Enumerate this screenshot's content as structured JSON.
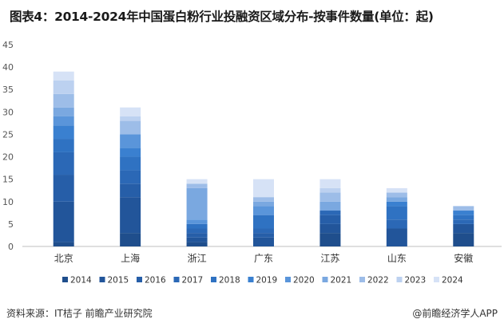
{
  "header": {
    "title": "图表4：2014-2024年中国蛋白粉行业投融资区域分布-按事件数量(单位：起)"
  },
  "footer": {
    "source": "资料来源：IT桔子 前瞻产业研究院",
    "brand": "@前瞻经济学人APP"
  },
  "chart_data": {
    "type": "bar",
    "stacked": true,
    "categories": [
      "北京",
      "上海",
      "浙江",
      "广东",
      "江苏",
      "山东",
      "安徽"
    ],
    "ylim": [
      0,
      45
    ],
    "yticks": [
      0,
      5,
      10,
      15,
      20,
      25,
      30,
      35,
      40,
      45
    ],
    "grid": false,
    "legend_position": "bottom",
    "series": [
      {
        "name": "2014",
        "color": "#1f4e8c",
        "values": [
          1,
          3,
          1,
          0,
          3,
          0,
          3
        ]
      },
      {
        "name": "2015",
        "color": "#22559a",
        "values": [
          9,
          8,
          1,
          2,
          2,
          4,
          2
        ]
      },
      {
        "name": "2016",
        "color": "#265ea8",
        "values": [
          6,
          3,
          1,
          1,
          2,
          0,
          0
        ]
      },
      {
        "name": "2017",
        "color": "#2b68b6",
        "values": [
          5,
          3,
          1,
          1,
          1,
          2,
          1
        ]
      },
      {
        "name": "2018",
        "color": "#2f72c2",
        "values": [
          3,
          3,
          1,
          3,
          0,
          3,
          1
        ]
      },
      {
        "name": "2019",
        "color": "#3a80d0",
        "values": [
          3,
          2,
          0,
          0,
          0,
          1,
          1
        ]
      },
      {
        "name": "2020",
        "color": "#5a95da",
        "values": [
          2,
          3,
          1,
          2,
          0,
          0,
          0
        ]
      },
      {
        "name": "2021",
        "color": "#7aa8e0",
        "values": [
          2,
          0,
          7,
          1,
          2,
          1,
          0
        ]
      },
      {
        "name": "2022",
        "color": "#9dbde8",
        "values": [
          3,
          3,
          1,
          1,
          2,
          1,
          1
        ]
      },
      {
        "name": "2023",
        "color": "#bcd1f0",
        "values": [
          3,
          1,
          0,
          0,
          1,
          0,
          0
        ]
      },
      {
        "name": "2024",
        "color": "#d6e2f6",
        "values": [
          2,
          2,
          1,
          4,
          2,
          1,
          0
        ]
      }
    ]
  }
}
